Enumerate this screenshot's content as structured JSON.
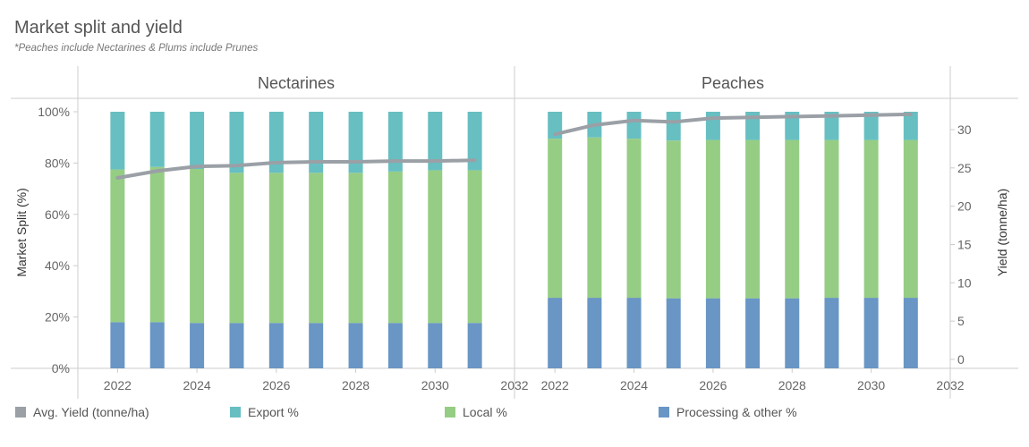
{
  "header": {
    "title": "Market split and yield",
    "subtitle": "*Peaches include Nectarines & Plums include Prunes"
  },
  "colors": {
    "processing": "#6996c4",
    "local": "#96cd84",
    "export": "#67bfc2",
    "yield": "#9aa0a6",
    "grid": "#cccccc",
    "text": "#666666"
  },
  "legend": [
    {
      "label": "Avg. Yield (tonne/ha)",
      "color": "#9aa0a6"
    },
    {
      "label": "Export %",
      "color": "#67bfc2"
    },
    {
      "label": "Local %",
      "color": "#96cd84"
    },
    {
      "label": "Processing & other %",
      "color": "#6996c4"
    }
  ],
  "chart_data": {
    "type": "bar",
    "stacked": true,
    "ylabel_left": "Market Split (%)",
    "ylabel_right": "Yield (tonne/ha)",
    "ylim_left": [
      0,
      100
    ],
    "ylim_right": [
      0,
      35
    ],
    "yticks_left": [
      "0%",
      "20%",
      "40%",
      "60%",
      "80%",
      "100%"
    ],
    "yticks_right": [
      "0",
      "5",
      "10",
      "15",
      "20",
      "25",
      "30"
    ],
    "xlim": [
      2021,
      2032
    ],
    "xticks": [
      "2022",
      "2024",
      "2026",
      "2028",
      "2030",
      "2032"
    ],
    "panels": [
      {
        "name": "Nectarines",
        "x": [
          2022,
          2023,
          2024,
          2025,
          2026,
          2027,
          2028,
          2029,
          2030,
          2031
        ],
        "series": [
          {
            "name": "Processing & other %",
            "values": [
              18,
              18,
              17.7,
              17.7,
              17.7,
              17.7,
              17.7,
              17.7,
              17.7,
              17.7
            ]
          },
          {
            "name": "Local %",
            "values": [
              59.5,
              60.5,
              60,
              58.5,
              58.5,
              58.5,
              58.5,
              59,
              59.5,
              59.5
            ]
          },
          {
            "name": "Export %",
            "values": [
              22.5,
              21.5,
              22.3,
              23.8,
              23.8,
              23.8,
              23.8,
              23.3,
              22.8,
              22.8
            ]
          }
        ],
        "yield": [
          23.7,
          24.6,
          25.2,
          25.3,
          25.7,
          25.8,
          25.8,
          25.9,
          25.9,
          26.0
        ]
      },
      {
        "name": "Peaches",
        "x": [
          2022,
          2023,
          2024,
          2025,
          2026,
          2027,
          2028,
          2029,
          2030,
          2031
        ],
        "series": [
          {
            "name": "Processing & other %",
            "values": [
              27.5,
              27.5,
              27.5,
              27.3,
              27.3,
              27.3,
              27.3,
              27.5,
              27.5,
              27.5
            ]
          },
          {
            "name": "Local %",
            "values": [
              62,
              62.5,
              62,
              61.5,
              61.7,
              61.7,
              61.7,
              61.5,
              61.5,
              61.5
            ]
          },
          {
            "name": "Export %",
            "values": [
              10.5,
              10,
              10.5,
              11.2,
              11,
              11,
              11,
              11,
              11,
              11
            ]
          }
        ],
        "yield": [
          29.4,
          30.6,
          31.2,
          31.0,
          31.5,
          31.6,
          31.7,
          31.8,
          31.9,
          32.0
        ]
      }
    ]
  }
}
